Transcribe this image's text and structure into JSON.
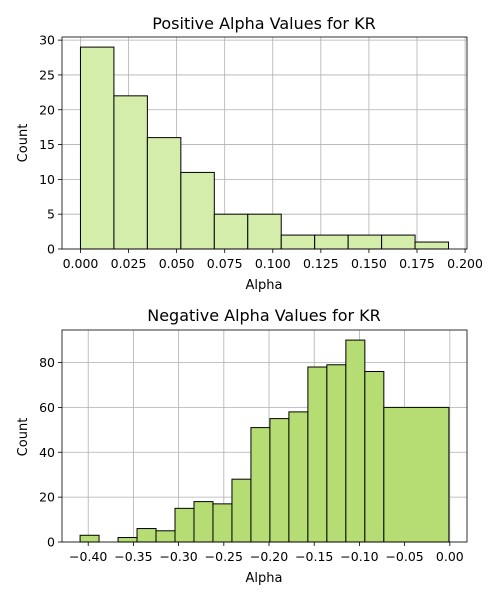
{
  "chart_data": [
    {
      "type": "bar",
      "title": "Positive Alpha Values for KR",
      "xlabel": "Alpha",
      "ylabel": "Count",
      "bins": [
        {
          "start": 0.0,
          "end": 0.0174,
          "count": 29
        },
        {
          "start": 0.0174,
          "end": 0.0348,
          "count": 22
        },
        {
          "start": 0.0348,
          "end": 0.0522,
          "count": 16
        },
        {
          "start": 0.0522,
          "end": 0.0696,
          "count": 11
        },
        {
          "start": 0.0696,
          "end": 0.087,
          "count": 5
        },
        {
          "start": 0.087,
          "end": 0.1044,
          "count": 5
        },
        {
          "start": 0.1044,
          "end": 0.1218,
          "count": 2
        },
        {
          "start": 0.1218,
          "end": 0.1392,
          "count": 2
        },
        {
          "start": 0.1392,
          "end": 0.1566,
          "count": 2
        },
        {
          "start": 0.1566,
          "end": 0.174,
          "count": 2
        },
        {
          "start": 0.174,
          "end": 0.1914,
          "count": 1
        }
      ],
      "xlim": [
        -0.0096,
        0.201
      ],
      "ylim": [
        0,
        30.45
      ],
      "xticks": [
        0.0,
        0.025,
        0.05,
        0.075,
        0.1,
        0.125,
        0.15,
        0.175,
        0.2
      ],
      "xtick_labels": [
        "0.000",
        "0.025",
        "0.050",
        "0.075",
        "0.100",
        "0.125",
        "0.150",
        "0.175",
        "0.200"
      ],
      "yticks": [
        0,
        5,
        10,
        15,
        20,
        25,
        30
      ],
      "ytick_labels": [
        "0",
        "5",
        "10",
        "15",
        "20",
        "25",
        "30"
      ],
      "grid": true,
      "color": "#d4edaa",
      "edge_color": "#000000"
    },
    {
      "type": "bar",
      "title": "Negative Alpha Values for KR",
      "xlabel": "Alpha",
      "ylabel": "Count",
      "bins": [
        {
          "start": -0.409,
          "end": -0.388,
          "count": 3
        },
        {
          "start": -0.388,
          "end": -0.367,
          "count": 0
        },
        {
          "start": -0.367,
          "end": -0.346,
          "count": 2
        },
        {
          "start": -0.346,
          "end": -0.325,
          "count": 6
        },
        {
          "start": -0.325,
          "end": -0.304,
          "count": 5
        },
        {
          "start": -0.304,
          "end": -0.283,
          "count": 15
        },
        {
          "start": -0.283,
          "end": -0.262,
          "count": 18
        },
        {
          "start": -0.262,
          "end": -0.241,
          "count": 17
        },
        {
          "start": -0.241,
          "end": -0.22,
          "count": 28
        },
        {
          "start": -0.22,
          "end": -0.199,
          "count": 51
        },
        {
          "start": -0.199,
          "end": -0.178,
          "count": 55
        },
        {
          "start": -0.178,
          "end": -0.157,
          "count": 58
        },
        {
          "start": -0.157,
          "end": -0.136,
          "count": 78
        },
        {
          "start": -0.136,
          "end": -0.115,
          "count": 79
        },
        {
          "start": -0.115,
          "end": -0.094,
          "count": 90
        },
        {
          "start": -0.094,
          "end": -0.073,
          "count": 76
        },
        {
          "start": -0.073,
          "end": -0.001,
          "count": 60
        }
      ],
      "xlim": [
        -0.429,
        0.019
      ],
      "ylim": [
        0,
        94.5
      ],
      "xticks": [
        -0.4,
        -0.35,
        -0.3,
        -0.25,
        -0.2,
        -0.15,
        -0.1,
        -0.05,
        0.0
      ],
      "xtick_labels": [
        "−0.40",
        "−0.35",
        "−0.30",
        "−0.25",
        "−0.20",
        "−0.15",
        "−0.10",
        "−0.05",
        "0.00"
      ],
      "yticks": [
        0,
        20,
        40,
        60,
        80
      ],
      "ytick_labels": [
        "0",
        "20",
        "40",
        "60",
        "80"
      ],
      "grid": true,
      "color": "#b5dd73",
      "edge_color": "#000000"
    }
  ]
}
